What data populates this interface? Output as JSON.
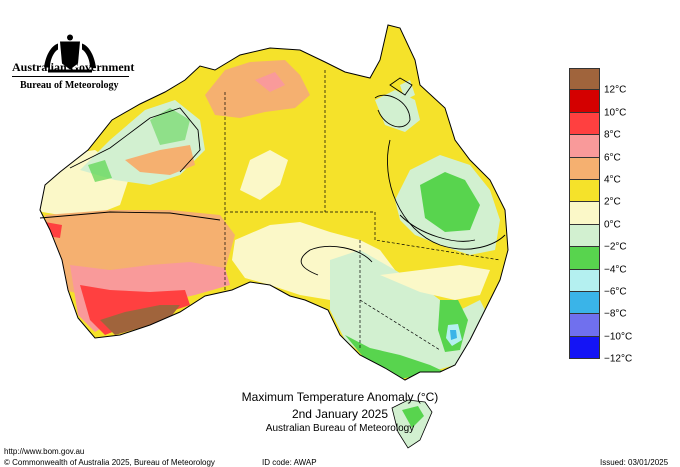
{
  "header": {
    "agency": "Australian Government",
    "bureau": "Bureau of Meteorology"
  },
  "title": {
    "line1": "Maximum Temperature Anomaly (°C)",
    "line2": "2nd January 2025",
    "line3": "Australian Bureau of Meteorology"
  },
  "legend": {
    "swatches": [
      {
        "color": "#a0643c"
      },
      {
        "color": "#d40000"
      },
      {
        "color": "#ff4040"
      },
      {
        "color": "#f99a9a"
      },
      {
        "color": "#f5b070"
      },
      {
        "color": "#f5e22a"
      },
      {
        "color": "#fbf8c8"
      },
      {
        "color": "#d2f0d0"
      },
      {
        "color": "#58d44e"
      },
      {
        "color": "#b4f0f0"
      },
      {
        "color": "#3ab4e8"
      },
      {
        "color": "#7070ee"
      },
      {
        "color": "#1414f5"
      }
    ],
    "labels": [
      "12°C",
      "10°C",
      "8°C",
      "6°C",
      "4°C",
      "2°C",
      "0°C",
      "−2°C",
      "−4°C",
      "−6°C",
      "−8°C",
      "−10°C",
      "−12°C"
    ]
  },
  "footer": {
    "url": "http://www.bom.gov.au",
    "copyright": "© Commonwealth of Australia 2025, Bureau of Meteorology",
    "id_code": "ID code: AWAP",
    "issued": "Issued: 03/01/2025"
  }
}
